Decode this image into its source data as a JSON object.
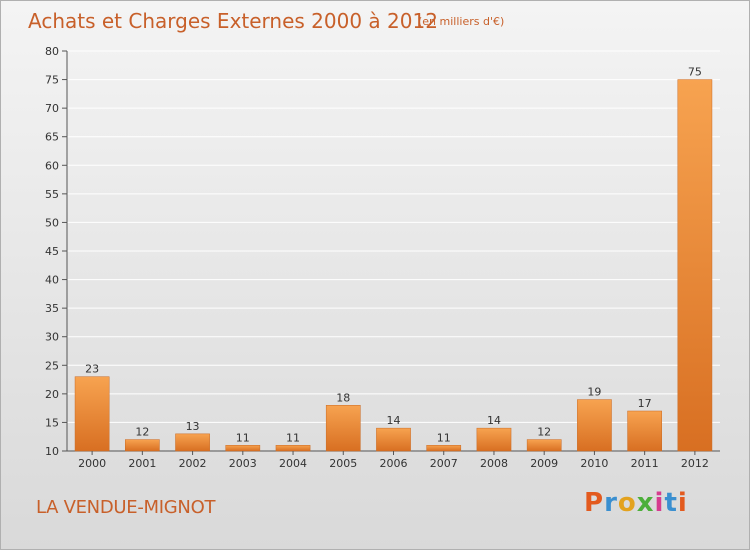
{
  "header": {
    "title": "Achats et Charges Externes 2000 à 2012",
    "subtitle": "(en milliers d'€)"
  },
  "footer": {
    "commune": "LA VENDUE-MIGNOT",
    "logo_text": "Proxiti",
    "logo_colors": [
      "#e35a1e",
      "#3a8fd0",
      "#e3a21e",
      "#4caf3a",
      "#d63c8f",
      "#3a8fd0",
      "#e35a1e"
    ]
  },
  "colors": {
    "bar_light": "#f7a350",
    "bar_dark": "#d86f22",
    "grid": "#ffffff",
    "axis": "#555555",
    "text": "#333333",
    "accent": "#c8602a"
  },
  "chart_data": {
    "type": "bar",
    "categories": [
      "2000",
      "2001",
      "2002",
      "2003",
      "2004",
      "2005",
      "2006",
      "2007",
      "2008",
      "2009",
      "2010",
      "2011",
      "2012"
    ],
    "values": [
      23,
      12,
      13,
      11,
      11,
      18,
      14,
      11,
      14,
      12,
      19,
      17,
      75
    ],
    "ylim": [
      10,
      80
    ],
    "yticks": [
      10,
      15,
      20,
      25,
      30,
      35,
      40,
      45,
      50,
      55,
      60,
      65,
      70,
      75,
      80
    ],
    "grid": true
  }
}
